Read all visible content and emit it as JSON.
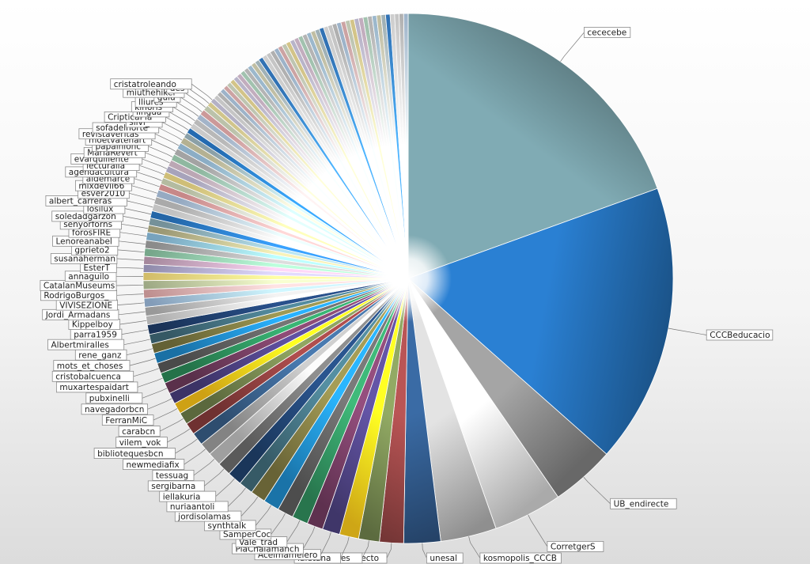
{
  "chart_data": {
    "type": "pie",
    "title": "",
    "start_angle_deg": 0,
    "direction": "clockwise",
    "labeled_slices": [
      {
        "label": "cececebe",
        "value": 20.0,
        "color": "#5f7f85"
      },
      {
        "label": "CCCBeducacio",
        "value": 17.5,
        "color": "#1f5f9c"
      },
      {
        "label": "UB_endirecte",
        "value": 4.0,
        "color": "#7a7a7a"
      },
      {
        "label": "CorretgerS",
        "value": 4.3,
        "color": "#c8c8c8"
      },
      {
        "label": "kosmopolis_CCCB",
        "value": 3.5,
        "color": "#a8a8a8"
      },
      {
        "label": "unesal",
        "value": 2.3,
        "color": "#2b4f7a"
      },
      {
        "label": "UB_endirecto",
        "value": 1.5,
        "color": "#8a3f3f"
      },
      {
        "label": "ebcdelletres",
        "value": 1.3,
        "color": "#6c7e4a"
      },
      {
        "label": "laietana",
        "value": 1.2,
        "color": "#f2c31a"
      },
      {
        "label": "Acelmamelero",
        "value": 1.1,
        "color": "#4a3f7c"
      },
      {
        "label": "PiaChalamanch",
        "value": 1.0,
        "color": "#6e3a5d"
      },
      {
        "label": "Vale_trad",
        "value": 1.0,
        "color": "#2f8a5a"
      },
      {
        "label": "SamperCoc",
        "value": 1.0,
        "color": "#5a5a5a"
      },
      {
        "label": "synthtalk",
        "value": 1.0,
        "color": "#1f87c6"
      },
      {
        "label": "jordisolamas",
        "value": 0.95,
        "color": "#7a7440"
      },
      {
        "label": "nuriaantoli",
        "value": 0.9,
        "color": "#3f6a78"
      },
      {
        "label": "iellakuria",
        "value": 0.9,
        "color": "#1f3f6a"
      },
      {
        "label": "sergibarna",
        "value": 0.85,
        "color": "#6a6a6a"
      },
      {
        "label": "tessuag",
        "value": 0.85,
        "color": "#bbbbbb"
      },
      {
        "label": "newmediafix",
        "value": 0.8,
        "color": "#9a9a9a"
      },
      {
        "label": "bibliotequesbcn",
        "value": 0.8,
        "color": "#365a82"
      },
      {
        "label": "vilem_vok",
        "value": 0.75,
        "color": "#823a3a"
      },
      {
        "label": "carabcn",
        "value": 0.75,
        "color": "#6b7a48"
      },
      {
        "label": "FerranMiC",
        "value": 0.7,
        "color": "#f2bd18"
      },
      {
        "label": "navegadorbcn",
        "value": 0.7,
        "color": "#473c78"
      },
      {
        "label": "pubxinelli",
        "value": 0.7,
        "color": "#6a3858"
      },
      {
        "label": "muxartespaidart",
        "value": 0.65,
        "color": "#2a8656"
      },
      {
        "label": "cristobalcuenca",
        "value": 0.65,
        "color": "#575757"
      },
      {
        "label": "mots_et_choses",
        "value": 0.65,
        "color": "#1e84c2"
      },
      {
        "label": "rene_ganz",
        "value": 0.6,
        "color": "#76723e"
      },
      {
        "label": "Albertmiralles",
        "value": 0.6,
        "color": "#3e6876"
      },
      {
        "label": "parra1959",
        "value": 0.6,
        "color": "#1e3c68"
      },
      {
        "label": "Kippelboy",
        "value": 0.55,
        "color": "#d0d0d0"
      },
      {
        "label": "Jordi_Armadans",
        "value": 0.55,
        "color": "#b4b4b4"
      },
      {
        "label": "VIVISEZIONE",
        "value": 0.55,
        "color": "#9ab7d8"
      },
      {
        "label": "RodrigoBurgos_",
        "value": 0.55,
        "color": "#e0a8a8"
      },
      {
        "label": "CatalanMuseums",
        "value": 0.55,
        "color": "#b8c49a"
      },
      {
        "label": "annaguilo",
        "value": 0.5,
        "color": "#f6dc7a"
      },
      {
        "label": "EsterT",
        "value": 0.5,
        "color": "#a8a2c8"
      },
      {
        "label": "susanaherman",
        "value": 0.5,
        "color": "#c2a0b8"
      },
      {
        "label": "gprieto2",
        "value": 0.5,
        "color": "#8cc4a4"
      },
      {
        "label": "Lenoreanabel",
        "value": 0.5,
        "color": "#a4a4a4"
      },
      {
        "label": "forosFIRE",
        "value": 0.5,
        "color": "#8cc0e0"
      },
      {
        "label": "senyorforns",
        "value": 0.45,
        "color": "#b8b48a"
      },
      {
        "label": "soledadgarzon",
        "value": 0.45,
        "color": "#8aaab4"
      },
      {
        "label": "losilux",
        "value": 0.45,
        "color": "#2a78c4"
      },
      {
        "label": "albert_carreras",
        "value": 0.45,
        "color": "#e4e4e4"
      },
      {
        "label": "esver2010",
        "value": 0.45,
        "color": "#c8c8c8"
      },
      {
        "label": "mixdevil66",
        "value": 0.45,
        "color": "#b0c8e4"
      },
      {
        "label": "aldemarce",
        "value": 0.4,
        "color": "#eaa0a0"
      },
      {
        "label": "agendacultura",
        "value": 0.4,
        "color": "#d4dcbc"
      },
      {
        "label": "lecturalia",
        "value": 0.4,
        "color": "#f4e08c"
      },
      {
        "label": "evarquillente",
        "value": 0.4,
        "color": "#c4c0dc"
      },
      {
        "label": "MariaRevert",
        "value": 0.4,
        "color": "#dcc4d4"
      },
      {
        "label": "papainiohc",
        "value": 0.4,
        "color": "#a8d8bc"
      },
      {
        "label": "moetvatenart",
        "value": 0.4,
        "color": "#c0c0c0"
      },
      {
        "label": "revistaveritas",
        "value": 0.4,
        "color": "#a4cce8"
      },
      {
        "label": "sofadelnorte",
        "value": 0.4,
        "color": "#d4d0ac"
      },
      {
        "label": "silvi_",
        "value": 0.35,
        "color": "#a4bcc4"
      },
      {
        "label": "CripticaPla",
        "value": 0.35,
        "color": "#2a7ed0"
      },
      {
        "label": "lingua",
        "value": 0.35,
        "color": "#eeeeee"
      },
      {
        "label": "kinoris",
        "value": 0.35,
        "color": "#d8d8d8"
      },
      {
        "label": "lliures",
        "value": 0.35,
        "color": "#c0d4ec"
      },
      {
        "label": "guiu",
        "value": 0.35,
        "color": "#f0b4b4"
      },
      {
        "label": "miuthehiker",
        "value": 0.35,
        "color": "#dce4c8"
      },
      {
        "label": "des",
        "value": 0.3,
        "color": "#f6e8a4"
      },
      {
        "label": "cristatroleando",
        "value": 0.3,
        "color": "#d4d0e8"
      }
    ],
    "unlabeled_slices": {
      "count": 48,
      "value_each": 0.28,
      "colors": [
        "#e8e8e8",
        "#cfcfcf",
        "#b9d2ec",
        "#f0c0c0",
        "#e0e8d0",
        "#f8e6a0",
        "#d8d4ec",
        "#e4cce0",
        "#bfe4ce",
        "#d4d4d4",
        "#b8d8f0",
        "#e2dfc0",
        "#bcd0d6",
        "#3a86d4",
        "#f2f2f2"
      ]
    }
  }
}
